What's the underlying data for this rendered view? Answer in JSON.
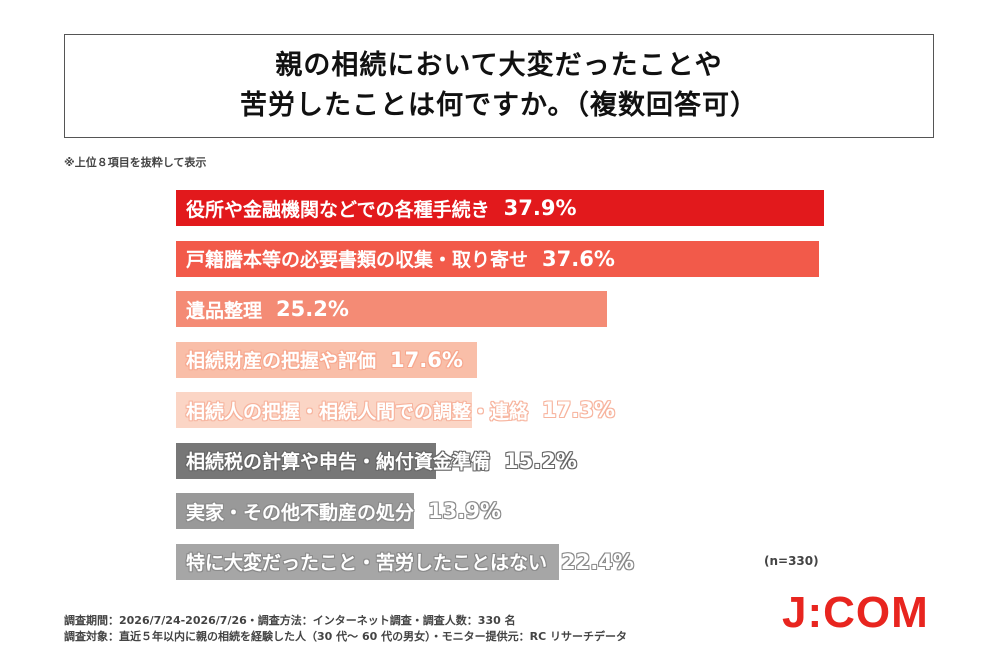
{
  "title": {
    "line1": "親の相続において大変だったことや",
    "line2": "苦労したことは何ですか。（複数回答可）"
  },
  "note": "※上位８項目を抜粋して表示",
  "chart_data": {
    "type": "bar",
    "orientation": "horizontal",
    "categories": [
      "役所や金融機関などでの各種手続き",
      "戸籍謄本等の必要書類の収集・取り寄せ",
      "遺品整理",
      "相続財産の把握や評価",
      "相続人の把握・相続人間での調整・連絡",
      "相続税の計算や申告・納付資金準備",
      "実家・その他不動産の処分",
      "特に大変だったこと・苦労したことはない"
    ],
    "values": [
      37.9,
      37.6,
      25.2,
      17.6,
      17.3,
      15.2,
      13.9,
      22.4
    ],
    "value_labels": [
      "37.9%",
      "37.6%",
      "25.2%",
      "17.6%",
      "17.3%",
      "15.2%",
      "13.9%",
      "22.4%"
    ],
    "colors": [
      "#e2191c",
      "#f25a4a",
      "#f48b75",
      "#f9bea8",
      "#fbd5c5",
      "#777777",
      "#999999",
      "#a6a6a6"
    ],
    "xlim": [
      0,
      37.9
    ]
  },
  "n_label": "(n=330)",
  "survey": {
    "period": "調査期間：2026/7/24-2026/7/26・調査方法：インターネット調査・調査人数：330 名",
    "target": "調査対象：直近５年以内に親の相続を経験した人（30 代～ 60 代の男女）・モニター提供元：RC リサーチデータ"
  },
  "logo": "J:COM"
}
